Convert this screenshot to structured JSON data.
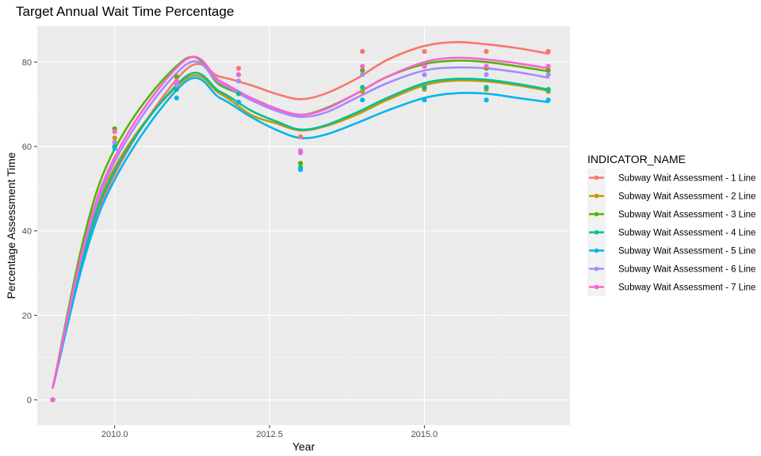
{
  "chart_data": {
    "type": "scatter",
    "title": "Target Annual Wait Time Percentage",
    "xlabel": "Year",
    "ylabel": "Percentage Assessment Time",
    "xlim": [
      2008.75,
      2017.35
    ],
    "ylim": [
      -6,
      88.5
    ],
    "x_ticks": [
      2010,
      2012.5,
      2015
    ],
    "x_tick_labels": [
      "2010.0",
      "2012.5",
      "2015.0"
    ],
    "y_ticks": [
      0,
      20,
      40,
      60,
      80
    ],
    "y_tick_labels": [
      "0",
      "20",
      "40",
      "60",
      "80"
    ],
    "grid": true,
    "legend_position": "right",
    "legend_title": "INDICATOR_NAME",
    "overlay": "smoothed trend line per series",
    "x": [
      2009,
      2010,
      2011,
      2012,
      2013,
      2014,
      2015,
      2016,
      2017
    ],
    "series": [
      {
        "name": "Subway Wait Assessment - 1 Line",
        "color": "#F8766D",
        "points": [
          0,
          62.0,
          75.0,
          78.5,
          62.3,
          82.5,
          82.5,
          82.5,
          82.5
        ],
        "smooth": [
          2.9,
          47,
          77.5,
          76.5,
          74.5,
          72.5,
          71.2,
          72.5,
          76.0,
          80.5,
          83.8,
          84.7,
          84.2,
          83.3,
          82.0
        ]
      },
      {
        "name": "Subway Wait Assessment - 2 Line",
        "color": "#C49A00",
        "points": [
          0,
          62.0,
          74.5,
          72.5,
          56.0,
          73.0,
          73.5,
          73.5,
          73.0
        ],
        "smooth": [
          2.9,
          49,
          75.5,
          72.5,
          67.5,
          65.5,
          63.8,
          64.8,
          67.5,
          71.0,
          74.5,
          75.6,
          75.4,
          74.5,
          73.2
        ]
      },
      {
        "name": "Subway Wait Assessment - 3 Line",
        "color": "#53B400",
        "points": [
          0,
          64.2,
          76.5,
          77.0,
          56.0,
          78.0,
          79.0,
          78.5,
          78.0
        ],
        "smooth": [
          2.9,
          53,
          80.3,
          74.5,
          71.5,
          69.0,
          67.5,
          69.0,
          72.5,
          76.5,
          79.5,
          80.3,
          80.0,
          79.0,
          77.8
        ]
      },
      {
        "name": "Subway Wait Assessment - 4 Line",
        "color": "#00C094",
        "points": [
          0,
          60.0,
          73.5,
          72.5,
          55.0,
          74.0,
          74.0,
          74.0,
          73.5
        ],
        "smooth": [
          2.9,
          48,
          76.0,
          73.0,
          68.5,
          66.0,
          64.0,
          65.0,
          68.0,
          71.5,
          75.0,
          76.0,
          75.8,
          74.8,
          73.5
        ]
      },
      {
        "name": "Subway Wait Assessment - 5 Line",
        "color": "#00B6EB",
        "points": [
          0,
          59.5,
          71.5,
          70.5,
          54.5,
          71.0,
          71.0,
          71.0,
          71.0
        ],
        "smooth": [
          2.9,
          46,
          74.8,
          71.5,
          67.0,
          64.0,
          62.0,
          62.8,
          65.5,
          68.5,
          71.5,
          72.6,
          72.5,
          71.5,
          70.5
        ]
      },
      {
        "name": "Subway Wait Assessment - 6 Line",
        "color": "#A58AFF",
        "points": [
          0,
          61.0,
          74.5,
          75.5,
          59.0,
          77.0,
          77.0,
          77.0,
          77.0
        ],
        "smooth": [
          2.9,
          50,
          78.8,
          75.0,
          71.0,
          68.5,
          67.0,
          68.0,
          71.5,
          75.0,
          78.0,
          78.7,
          78.5,
          77.6,
          76.3
        ]
      },
      {
        "name": "Subway Wait Assessment - 7 Line",
        "color": "#FB61D7",
        "points": [
          0,
          63.5,
          75.5,
          77.0,
          58.5,
          79.0,
          79.0,
          79.0,
          79.0
        ],
        "smooth": [
          2.9,
          51,
          80.0,
          75.5,
          71.5,
          69.0,
          67.5,
          68.8,
          72.5,
          76.5,
          80.0,
          81.0,
          80.6,
          79.7,
          78.5
        ]
      }
    ],
    "smooth_x": [
      2009,
      2009.8,
      2011.1,
      2011.7,
      2012.2,
      2012.6,
      2013.0,
      2013.4,
      2013.9,
      2014.4,
      2015.0,
      2015.5,
      2016.0,
      2016.5,
      2017
    ]
  }
}
